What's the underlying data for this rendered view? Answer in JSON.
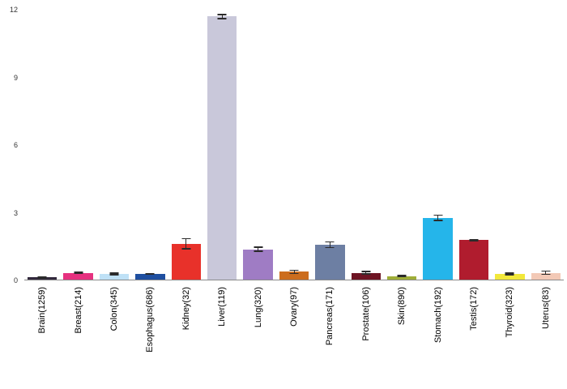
{
  "chart_data": {
    "type": "bar",
    "title": "",
    "xlabel": "",
    "ylabel": "",
    "categories": [
      "Brain(1259)",
      "Breast(214)",
      "Colon(345)",
      "Esophagus(686)",
      "Kidney(32)",
      "Liver(119)",
      "Lung(320)",
      "Ovary(97)",
      "Pancreas(171)",
      "Prostate(106)",
      "Skin(890)",
      "Stomach(192)",
      "Testis(172)",
      "Thyroid(323)",
      "Uterus(83)"
    ],
    "values": [
      0.1,
      0.3,
      0.25,
      0.25,
      1.6,
      11.7,
      1.35,
      0.35,
      1.55,
      0.3,
      0.15,
      2.75,
      1.75,
      0.25,
      0.3
    ],
    "errors": [
      0.05,
      0.06,
      0.06,
      0.05,
      0.25,
      0.12,
      0.12,
      0.1,
      0.15,
      0.08,
      0.05,
      0.15,
      0.05,
      0.06,
      0.1
    ],
    "bar_colors": [
      "#33293d",
      "#e6317f",
      "#bfe1f6",
      "#1f4fa0",
      "#e8312a",
      "#c9c8da",
      "#9f7cc4",
      "#cc6d1e",
      "#6d7fa3",
      "#6e1423",
      "#9fae38",
      "#25b5ea",
      "#b01c2e",
      "#f2e83b",
      "#f3c9b6"
    ],
    "error_bar_color": "#2b2b2b",
    "ylim": [
      0,
      12
    ],
    "yticks": [
      0,
      3,
      6,
      9,
      12
    ],
    "grid": false,
    "legend": false,
    "axis_line_color": "#8a8a8a"
  }
}
